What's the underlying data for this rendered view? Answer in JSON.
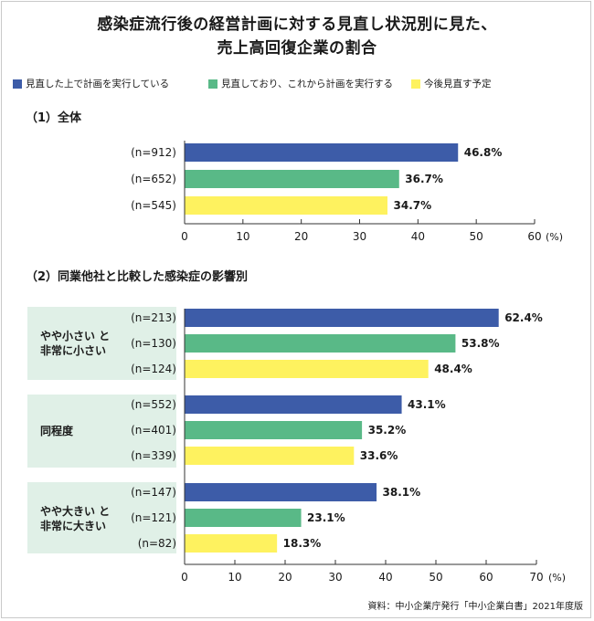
{
  "title": {
    "line1": "感染症流行後の経営計画に対する見直し状況別に見た、",
    "line2": "売上高回復企業の割合"
  },
  "colors": {
    "blue": "#3d5ca8",
    "green": "#59b987",
    "yellow": "#fef25f",
    "axis": "#333333",
    "group_bg": "#e0f0e7"
  },
  "legend": [
    {
      "label": "見直した上で計画を実行している",
      "color": "#3d5ca8"
    },
    {
      "label": "見直しており、これから計画を実行する",
      "color": "#59b987"
    },
    {
      "label": "今後見直す予定",
      "color": "#fef25f"
    }
  ],
  "sections": {
    "s1": "（1）全体",
    "s2": "（2）同業他社と比較した感染症の影響別"
  },
  "groups": {
    "g1": [
      "やや小さい と",
      "非常に小さい"
    ],
    "g2": [
      "同程度"
    ],
    "g3": [
      "やや大きい と",
      "非常に大きい"
    ]
  },
  "source": "資料：中小企業庁発行「中小企業白書」2021年度版",
  "chart_data": [
    {
      "type": "bar",
      "orientation": "horizontal",
      "title": "（1）全体",
      "categories": [
        "(n=912)",
        "(n=652)",
        "(n=545)"
      ],
      "values": [
        46.8,
        36.7,
        34.7
      ],
      "value_labels": [
        "46.8%",
        "36.7%",
        "34.7%"
      ],
      "series_index": [
        0,
        1,
        2
      ],
      "xlim": [
        0,
        60
      ],
      "ticks": [
        0,
        10,
        20,
        30,
        40,
        50,
        60
      ],
      "unit_label": "(%)"
    },
    {
      "type": "bar",
      "orientation": "horizontal",
      "title": "（2）同業他社と比較した感染症の影響別",
      "categories": [
        "(n=213)",
        "(n=130)",
        "(n=124)",
        "(n=552)",
        "(n=401)",
        "(n=339)",
        "(n=147)",
        "(n=121)",
        "(n=82)"
      ],
      "values": [
        62.4,
        53.8,
        48.4,
        43.1,
        35.2,
        33.6,
        38.1,
        23.1,
        18.3
      ],
      "value_labels": [
        "62.4%",
        "53.8%",
        "48.4%",
        "43.1%",
        "35.2%",
        "33.6%",
        "38.1%",
        "23.1%",
        "18.3%"
      ],
      "series_index": [
        0,
        1,
        2,
        0,
        1,
        2,
        0,
        1,
        2
      ],
      "groups": [
        "やや小さい と 非常に小さい",
        "同程度",
        "やや大きい と 非常に大きい"
      ],
      "xlim": [
        0,
        70
      ],
      "ticks": [
        0,
        10,
        20,
        30,
        40,
        50,
        60,
        70
      ],
      "unit_label": "(%)"
    }
  ]
}
